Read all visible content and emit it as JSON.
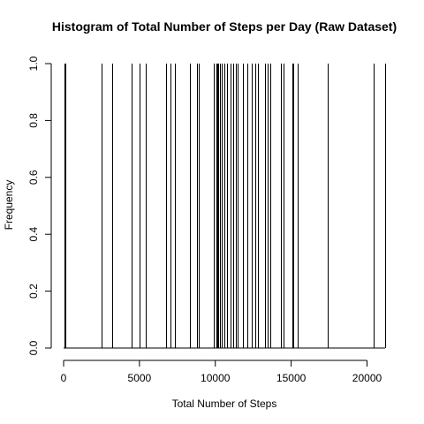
{
  "chart_data": {
    "type": "bar",
    "title": "Histogram of Total Number of Steps per Day (Raw Dataset)",
    "xlabel": "Total Number of Steps",
    "ylabel": "Frequency",
    "xlim": [
      0,
      21194
    ],
    "ylim": [
      0,
      1
    ],
    "xticks": [
      0,
      5000,
      10000,
      15000,
      20000
    ],
    "yticks": [
      0.0,
      0.2,
      0.4,
      0.6,
      0.8,
      1.0
    ],
    "ytick_labels": [
      "0.0",
      "0.2",
      "0.4",
      "0.6",
      "0.8",
      "1.0"
    ],
    "bar_frequency": 1,
    "x": [
      41,
      126,
      2492,
      3219,
      4472,
      5018,
      5441,
      6778,
      7047,
      7336,
      8334,
      8355,
      8821,
      8918,
      9900,
      10056,
      10119,
      10139,
      10183,
      10304,
      10395,
      10439,
      10571,
      10600,
      10765,
      11015,
      11162,
      11352,
      11458,
      11829,
      11834,
      12116,
      12426,
      12608,
      12787,
      12811,
      13294,
      13452,
      13460,
      13646,
      14339,
      14478,
      15084,
      15098,
      15110,
      15414,
      17382,
      20427,
      21194
    ]
  }
}
